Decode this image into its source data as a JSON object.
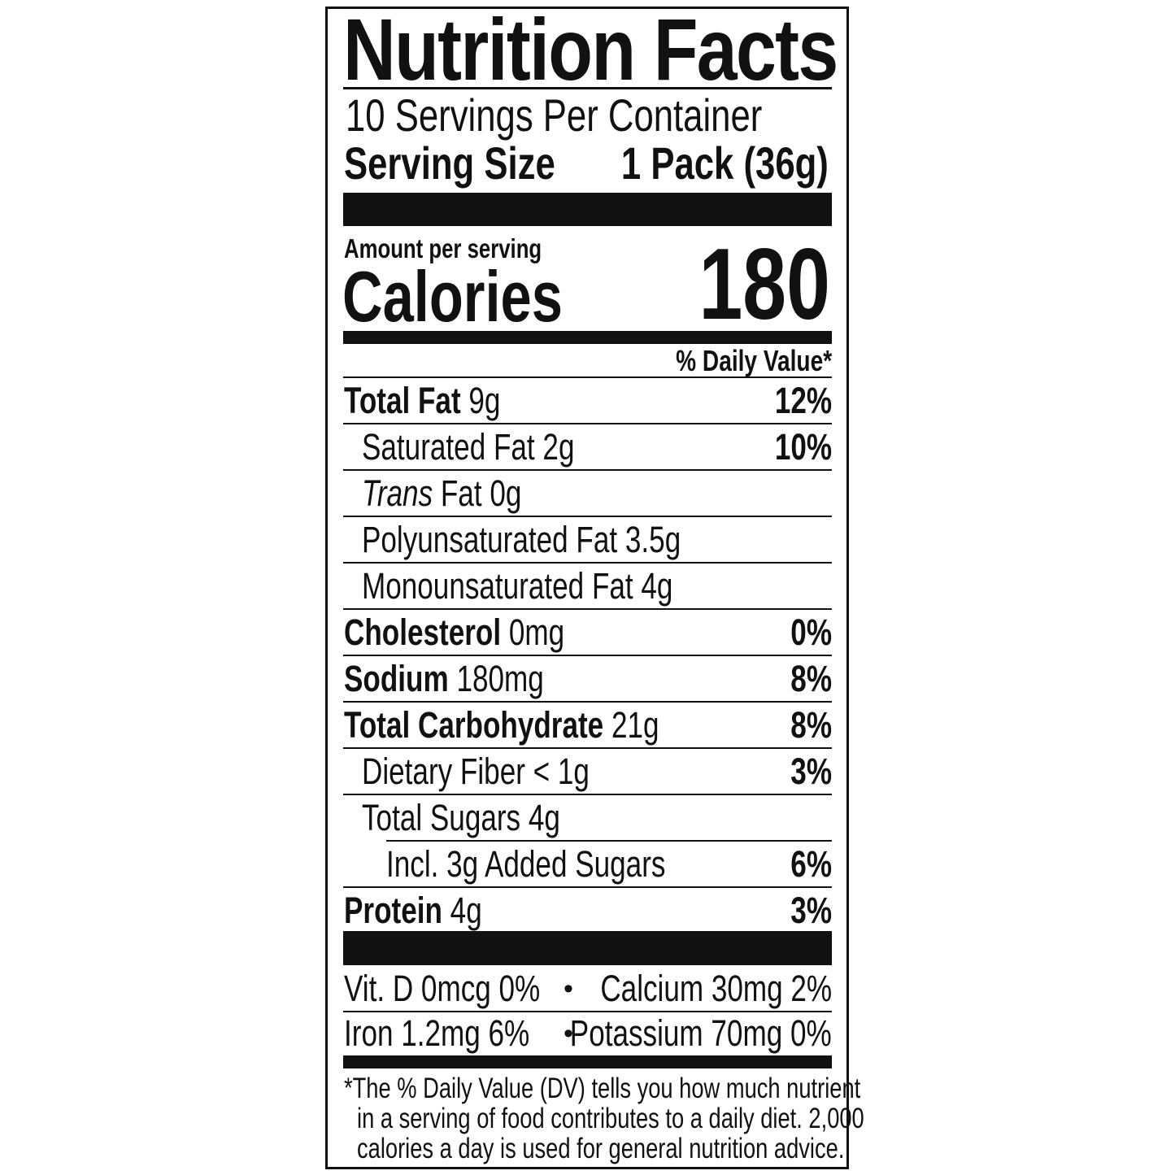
{
  "title": "Nutrition Facts",
  "servings_per_container": "10 Servings Per Container",
  "serving_size_label": "Serving Size",
  "serving_size_value": "1 Pack (36g)",
  "amount_per_serving": "Amount per serving",
  "calories_label": "Calories",
  "calories_value": "180",
  "daily_value_header": "% Daily Value*",
  "nutrients": [
    {
      "name": "Total Fat",
      "amount": "9g",
      "dv": "12%",
      "bold": true,
      "indent": 0
    },
    {
      "name": "Saturated Fat",
      "amount": "2g",
      "dv": "10%",
      "bold": false,
      "indent": 1
    },
    {
      "name": "Trans",
      "name_suffix": " Fat",
      "amount": "0g",
      "dv": "",
      "bold": false,
      "indent": 1,
      "italic_prefix": true
    },
    {
      "name": "Polyunsaturated Fat",
      "amount": "3.5g",
      "dv": "",
      "bold": false,
      "indent": 1
    },
    {
      "name": "Monounsaturated Fat",
      "amount": "4g",
      "dv": "",
      "bold": false,
      "indent": 1
    },
    {
      "name": "Cholesterol",
      "amount": "0mg",
      "dv": "0%",
      "bold": true,
      "indent": 0
    },
    {
      "name": "Sodium",
      "amount": "180mg",
      "dv": "8%",
      "bold": true,
      "indent": 0
    },
    {
      "name": "Total Carbohydrate",
      "amount": "21g",
      "dv": "8%",
      "bold": true,
      "indent": 0
    },
    {
      "name": "Dietary Fiber",
      "amount": "< 1g",
      "dv": "3%",
      "bold": false,
      "indent": 1
    },
    {
      "name": "Total Sugars",
      "amount": "4g",
      "dv": "",
      "bold": false,
      "indent": 1
    },
    {
      "name": "Incl. 3g Added Sugars",
      "amount": "",
      "dv": "6%",
      "bold": false,
      "indent": 2
    },
    {
      "name": "Protein",
      "amount": "4g",
      "dv": "3%",
      "bold": true,
      "indent": 0
    }
  ],
  "vitamins": [
    {
      "left": "Vit. D 0mcg 0%",
      "right": "Calcium 30mg 2%"
    },
    {
      "left": "Iron 1.2mg 6%",
      "right": "Potassium 70mg 0%"
    }
  ],
  "bullet": "•",
  "footnote": [
    "*The % Daily Value (DV) tells you how much nutrient",
    "in a serving of food contributes to a daily diet. 2,000",
    "calories a day is used for general nutrition advice."
  ]
}
